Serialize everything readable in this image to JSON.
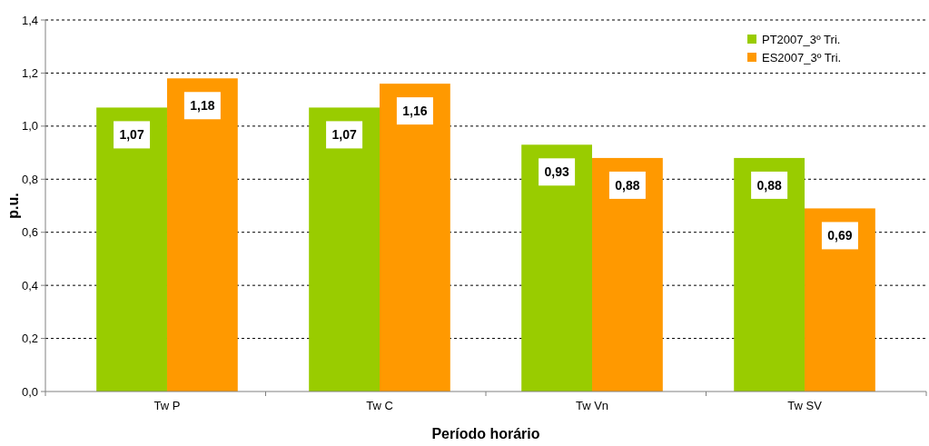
{
  "chart_data": {
    "type": "bar",
    "xlabel": "Período horário",
    "ylabel": "p.u.",
    "categories": [
      "Tw P",
      "Tw C",
      "Tw Vn",
      "Tw SV"
    ],
    "series": [
      {
        "name": "PT2007_3º Tri.",
        "color": "#99cc00",
        "values": [
          1.07,
          1.07,
          0.93,
          0.88
        ],
        "value_labels": [
          "1,07",
          "1,07",
          "0,93",
          "0,88"
        ]
      },
      {
        "name": "ES2007_3º Tri.",
        "color": "#ff9900",
        "values": [
          1.18,
          1.16,
          0.88,
          0.69
        ],
        "value_labels": [
          "1,18",
          "1,16",
          "0,88",
          "0,69"
        ]
      }
    ],
    "ylim": [
      0,
      1.4
    ],
    "yticks": [
      {
        "value": 0,
        "label": "0,0"
      },
      {
        "value": 0.2,
        "label": "0,2"
      },
      {
        "value": 0.4,
        "label": "0,4"
      },
      {
        "value": 0.6,
        "label": "0,6"
      },
      {
        "value": 0.8,
        "label": "0,8"
      },
      {
        "value": 1,
        "label": "1,0"
      },
      {
        "value": 1.2,
        "label": "1,2"
      },
      {
        "value": 1.4,
        "label": "1,4"
      }
    ],
    "grid": "y",
    "legend": "top right"
  }
}
